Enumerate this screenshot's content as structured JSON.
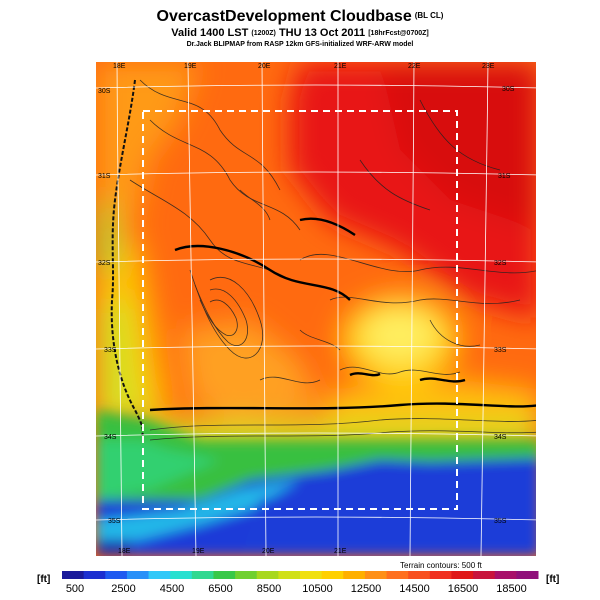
{
  "header": {
    "title": "OvercastDevelopment Cloudbase",
    "title_tag": "(BL CL)",
    "valid_prefix": "Valid 1400 LST",
    "valid_local": "(1200Z)",
    "valid_date": "THU 13 Oct 2011",
    "valid_forecast": "[18hrFcst@0700Z]",
    "model_line": "Dr.Jack BLIPMAP from RASP 12km GFS-initialized WRF-ARW model"
  },
  "map": {
    "lon_labels_top": [
      "18E",
      "19E",
      "20E",
      "21E",
      "22E",
      "23E"
    ],
    "lon_labels_bottom": [
      "18E",
      "19E",
      "20E",
      "21E"
    ],
    "lat_labels_right": [
      "30S",
      "31S",
      "32S",
      "33S",
      "34S",
      "35S"
    ],
    "lat_labels_left": [
      "30S",
      "31S",
      "32S",
      "33S",
      "34S",
      "35S"
    ],
    "terrain_note": "Terrain contours: 500 ft",
    "colors": {
      "ocean": "#1a3ad8",
      "coast": "#22c8f0",
      "low": "#30b040",
      "mid": "#c8d818",
      "high": "#ffcc00",
      "upper": "#ff7a1a",
      "top": "#e81818"
    }
  },
  "colorbar": {
    "unit_left": "[ft]",
    "unit_right": "[ft]",
    "labels": [
      "500",
      "2500",
      "4500",
      "6500",
      "8500",
      "10500",
      "12500",
      "14500",
      "16500",
      "18500"
    ],
    "colors": [
      "#1a1a9a",
      "#1c2fd0",
      "#1f5af0",
      "#2890f8",
      "#30c8f8",
      "#28e0d0",
      "#30d890",
      "#38c848",
      "#70d030",
      "#a8d820",
      "#d0e018",
      "#f0e010",
      "#ffd000",
      "#ffb000",
      "#ff9018",
      "#ff7020",
      "#f85020",
      "#f03020",
      "#e01818",
      "#c8143c",
      "#a8106a",
      "#90107a"
    ]
  }
}
